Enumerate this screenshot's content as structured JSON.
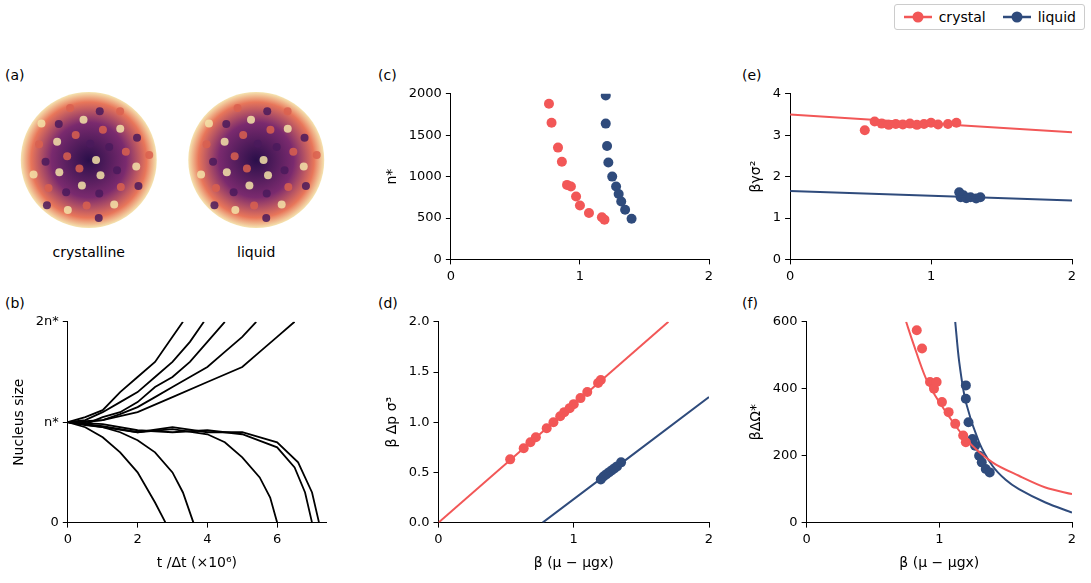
{
  "chart_data": [
    {
      "type": "image",
      "title": "(a)",
      "labels": [
        "crystalline",
        "liquid"
      ]
    },
    {
      "type": "line",
      "title": "(b)",
      "x_label": "t /Δt (×10⁶)",
      "y_label": "Nucleus size",
      "xlim": [
        0,
        7.4
      ],
      "xticks": [
        0,
        2,
        4,
        6
      ],
      "ylim": [
        0,
        2
      ],
      "yticks": [
        0,
        {
          "value": 1,
          "label": "n*"
        },
        {
          "value": 2,
          "label": "2n*"
        }
      ],
      "grid": false,
      "series": [
        {
          "color": "#000000",
          "x": [
            0,
            0.5,
            1,
            1.5,
            2,
            2.5,
            3,
            3.3
          ],
          "values": [
            1,
            1.05,
            1.12,
            1.3,
            1.45,
            1.6,
            1.85,
            2
          ]
        },
        {
          "color": "#000000",
          "x": [
            0,
            0.5,
            1,
            1.5,
            2,
            2.5,
            3,
            3.5,
            3.9
          ],
          "values": [
            1,
            1.02,
            1.1,
            1.2,
            1.3,
            1.45,
            1.6,
            1.8,
            2
          ]
        },
        {
          "color": "#000000",
          "x": [
            0,
            0.5,
            1,
            1.5,
            2,
            2.5,
            3,
            3.5,
            4,
            4.5
          ],
          "values": [
            1,
            0.98,
            1.05,
            1.1,
            1.2,
            1.35,
            1.45,
            1.6,
            1.8,
            2
          ]
        },
        {
          "color": "#000000",
          "x": [
            0,
            0.5,
            1,
            1.5,
            2,
            2.5,
            3,
            3.5,
            4,
            4.5,
            5,
            5.4
          ],
          "values": [
            1,
            1.0,
            1.02,
            1.08,
            1.15,
            1.25,
            1.35,
            1.45,
            1.55,
            1.7,
            1.85,
            2
          ]
        },
        {
          "color": "#000000",
          "x": [
            0,
            1,
            2,
            3,
            4,
            5,
            5.5,
            6,
            6.5
          ],
          "values": [
            1,
            1.02,
            1.1,
            1.25,
            1.4,
            1.55,
            1.7,
            1.85,
            2
          ]
        },
        {
          "color": "#000000",
          "x": [
            0,
            0.5,
            1,
            1.5,
            2,
            2.5,
            2.8
          ],
          "values": [
            1,
            0.95,
            0.85,
            0.7,
            0.5,
            0.2,
            0
          ]
        },
        {
          "color": "#000000",
          "x": [
            0,
            0.5,
            1,
            1.5,
            2,
            2.5,
            3,
            3.3,
            3.6
          ],
          "values": [
            1,
            0.97,
            0.95,
            0.9,
            0.82,
            0.7,
            0.5,
            0.3,
            0
          ]
        },
        {
          "color": "#000000",
          "x": [
            0,
            1,
            2,
            3,
            4,
            4.5,
            5,
            5.5,
            5.8,
            6.0
          ],
          "values": [
            1,
            0.95,
            0.9,
            0.93,
            0.88,
            0.8,
            0.65,
            0.45,
            0.25,
            0
          ]
        },
        {
          "color": "#000000",
          "x": [
            0,
            1,
            2,
            3,
            4,
            5,
            6,
            6.5,
            6.8,
            7.0
          ],
          "values": [
            1,
            0.98,
            0.92,
            0.9,
            0.92,
            0.88,
            0.75,
            0.55,
            0.3,
            0
          ]
        },
        {
          "color": "#000000",
          "x": [
            0,
            1,
            2,
            3,
            4,
            5,
            6,
            6.6,
            7.0,
            7.2
          ],
          "values": [
            1,
            0.96,
            0.9,
            0.95,
            0.9,
            0.9,
            0.8,
            0.6,
            0.3,
            0
          ]
        }
      ]
    },
    {
      "type": "scatter",
      "title": "(c)",
      "y_label": "n*",
      "xlim": [
        0,
        2
      ],
      "xticks": [
        0,
        1,
        2
      ],
      "ylim": [
        0,
        2000
      ],
      "yticks": [
        0,
        500,
        1000,
        1500,
        2000
      ],
      "grid": false,
      "legend": "top right",
      "series": [
        {
          "name": "crystal",
          "color": "#f25757",
          "marker": "o",
          "x": [
            0.76,
            0.78,
            0.83,
            0.86,
            0.9,
            0.93,
            0.97,
            1.0,
            1.07,
            1.17,
            1.19
          ],
          "values": [
            1880,
            1650,
            1350,
            1180,
            900,
            880,
            760,
            650,
            560,
            510,
            480
          ]
        },
        {
          "name": "liquid",
          "color": "#2f4b7c",
          "marker": "o",
          "x": [
            1.2,
            1.2,
            1.21,
            1.22,
            1.25,
            1.28,
            1.3,
            1.32,
            1.35,
            1.4
          ],
          "values": [
            1980,
            1640,
            1370,
            1170,
            1000,
            880,
            790,
            700,
            600,
            490
          ]
        }
      ]
    },
    {
      "type": "scatter",
      "title": "(d)",
      "x_label": "β (μ − μgx)",
      "y_label": "β Δp σ³",
      "xlim": [
        0,
        2
      ],
      "xticks": [
        0,
        1,
        2
      ],
      "ylim": [
        0,
        2
      ],
      "yticks": [
        {
          "value": 0,
          "label": "0.0"
        },
        {
          "value": 0.5,
          "label": "0.5"
        },
        {
          "value": 1,
          "label": "1.0"
        },
        {
          "value": 1.5,
          "label": "1.5"
        },
        {
          "value": 2,
          "label": "2.0"
        }
      ],
      "grid": false,
      "series": [
        {
          "name": "crystal",
          "color": "#f25757",
          "marker": "o",
          "x": [
            0.53,
            0.63,
            0.68,
            0.72,
            0.8,
            0.85,
            0.9,
            0.93,
            0.97,
            1.0,
            1.05,
            1.1,
            1.18,
            1.2
          ],
          "values": [
            0.63,
            0.74,
            0.8,
            0.85,
            0.94,
            1.0,
            1.06,
            1.1,
            1.14,
            1.18,
            1.24,
            1.3,
            1.39,
            1.42
          ],
          "fit_x": [
            0,
            1.7
          ],
          "fit_values": [
            0,
            2.0
          ]
        },
        {
          "name": "liquid",
          "color": "#2f4b7c",
          "marker": "o",
          "x": [
            1.2,
            1.22,
            1.24,
            1.26,
            1.28,
            1.3,
            1.32,
            1.35
          ],
          "values": [
            0.43,
            0.46,
            0.48,
            0.5,
            0.52,
            0.54,
            0.56,
            0.6
          ],
          "fit_x": [
            0.77,
            2
          ],
          "fit_values": [
            0,
            1.25
          ]
        }
      ]
    },
    {
      "type": "scatter",
      "title": "(e)",
      "y_label": "βγσ²",
      "xlim": [
        0,
        2
      ],
      "xticks": [
        0,
        1,
        2
      ],
      "ylim": [
        0,
        4
      ],
      "yticks": [
        0,
        1,
        2,
        3,
        4
      ],
      "grid": false,
      "series": [
        {
          "name": "crystal",
          "color": "#f25757",
          "marker": "o",
          "x": [
            0.53,
            0.6,
            0.65,
            0.7,
            0.75,
            0.8,
            0.85,
            0.9,
            0.95,
            1.0,
            1.05,
            1.12,
            1.18
          ],
          "values": [
            3.12,
            3.33,
            3.28,
            3.25,
            3.27,
            3.26,
            3.28,
            3.25,
            3.27,
            3.3,
            3.26,
            3.27,
            3.3
          ],
          "fit_x": [
            0,
            2
          ],
          "fit_values": [
            3.5,
            3.07
          ]
        },
        {
          "name": "liquid",
          "color": "#2f4b7c",
          "marker": "o",
          "x": [
            1.2,
            1.21,
            1.23,
            1.25,
            1.28,
            1.32,
            1.35
          ],
          "values": [
            1.62,
            1.5,
            1.55,
            1.48,
            1.5,
            1.47,
            1.5
          ],
          "fit_x": [
            0,
            2
          ],
          "fit_values": [
            1.65,
            1.42
          ]
        }
      ]
    },
    {
      "type": "scatter",
      "title": "(f)",
      "x_label": "β (μ − μgx)",
      "y_label": "βΔΩ*",
      "xlim": [
        0,
        2
      ],
      "xticks": [
        0,
        1,
        2
      ],
      "ylim": [
        0,
        600
      ],
      "yticks": [
        0,
        200,
        400,
        600
      ],
      "grid": false,
      "series": [
        {
          "name": "crystal",
          "color": "#f25757",
          "marker": "o",
          "x": [
            0.83,
            0.87,
            0.93,
            0.96,
            0.98,
            1.02,
            1.07,
            1.12,
            1.18,
            1.2
          ],
          "values": [
            575,
            520,
            420,
            400,
            420,
            360,
            330,
            295,
            260,
            240
          ],
          "fit_x": [
            0.75,
            0.8,
            0.9,
            1.0,
            1.2,
            1.4,
            1.6,
            1.8,
            2.0
          ],
          "fit_values": [
            600,
            540,
            430,
            360,
            250,
            180,
            140,
            105,
            85
          ]
        },
        {
          "name": "liquid",
          "color": "#2f4b7c",
          "marker": "o",
          "x": [
            1.2,
            1.2,
            1.22,
            1.25,
            1.27,
            1.3,
            1.32,
            1.35,
            1.38
          ],
          "values": [
            410,
            370,
            300,
            250,
            230,
            200,
            180,
            160,
            150
          ],
          "fit_x": [
            1.12,
            1.15,
            1.2,
            1.3,
            1.4,
            1.5,
            1.6,
            1.8,
            2.0
          ],
          "fit_values": [
            600,
            480,
            360,
            240,
            170,
            128,
            100,
            60,
            30
          ]
        }
      ]
    }
  ]
}
